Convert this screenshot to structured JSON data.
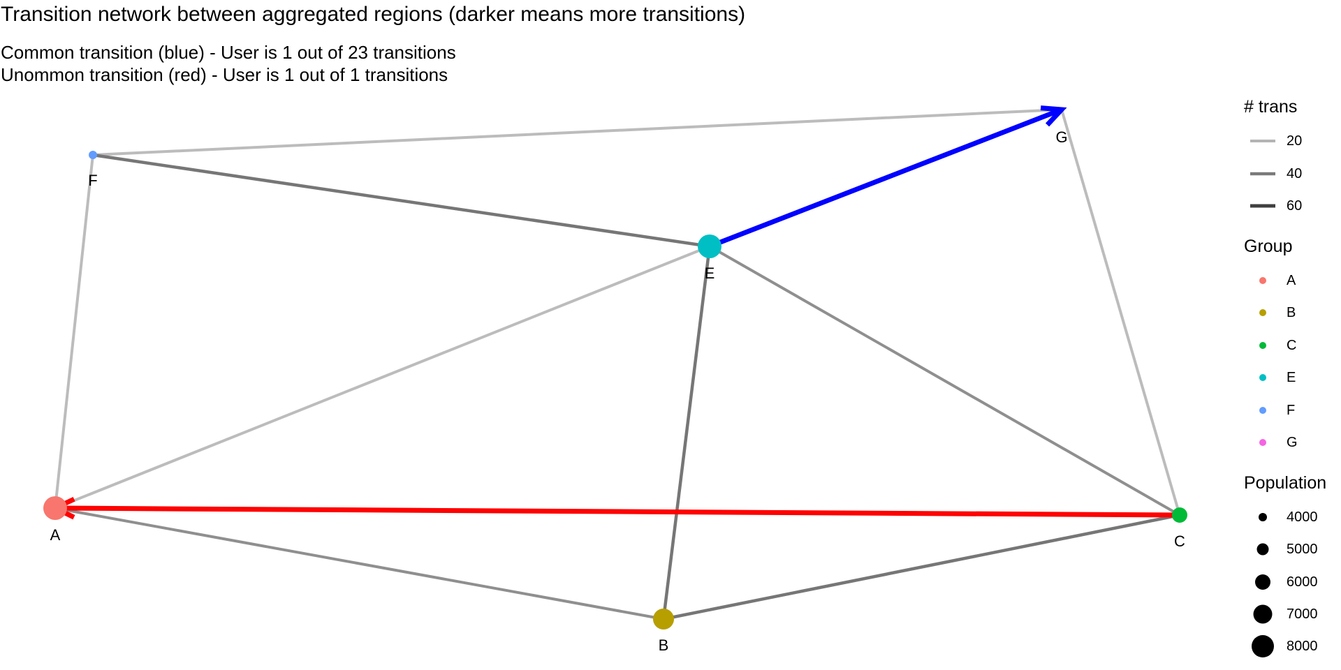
{
  "title": "Transition network between aggregated regions (darker means more transitions)",
  "subtitle_lines": [
    "Common transition (blue) - User is 1 out of 23 transitions",
    "Unommon transition (red) - User is 1 out of 1 transitions"
  ],
  "nodes": [
    {
      "id": "A",
      "label": "A",
      "group": "A",
      "color": "#F8766D",
      "size": "large"
    },
    {
      "id": "B",
      "label": "B",
      "group": "B",
      "color": "#B79F00",
      "size": "medium"
    },
    {
      "id": "C",
      "label": "C",
      "group": "C",
      "color": "#00BA38",
      "size": "small"
    },
    {
      "id": "E",
      "label": "E",
      "group": "E",
      "color": "#00BFC4",
      "size": "large"
    },
    {
      "id": "F",
      "label": "F",
      "group": "F",
      "color": "#619CFF",
      "size": "tiny"
    },
    {
      "id": "G",
      "label": "G",
      "group": "G",
      "color": "#F564E3",
      "size": "none"
    }
  ],
  "edges": [
    {
      "from": "F",
      "to": "G",
      "trans_level": "low"
    },
    {
      "from": "F",
      "to": "E",
      "trans_level": "high"
    },
    {
      "from": "F",
      "to": "A",
      "trans_level": "low"
    },
    {
      "from": "E",
      "to": "A",
      "trans_level": "low"
    },
    {
      "from": "E",
      "to": "B",
      "trans_level": "high"
    },
    {
      "from": "E",
      "to": "C",
      "trans_level": "mid"
    },
    {
      "from": "G",
      "to": "C",
      "trans_level": "low"
    },
    {
      "from": "A",
      "to": "B",
      "trans_level": "mid"
    },
    {
      "from": "B",
      "to": "C",
      "trans_level": "high"
    }
  ],
  "highlighted": [
    {
      "from": "E",
      "to": "G",
      "color": "#0000FF",
      "meaning": "common"
    },
    {
      "from": "C",
      "to": "A",
      "color": "#FF0000",
      "meaning": "uncommon"
    }
  ],
  "legend": {
    "trans": {
      "title": "# trans",
      "items": [
        {
          "label": "20",
          "color": "#b4b4b4"
        },
        {
          "label": "40",
          "color": "#7a7a7a"
        },
        {
          "label": "60",
          "color": "#404040"
        }
      ]
    },
    "group": {
      "title": "Group",
      "items": [
        {
          "label": "A",
          "color": "#F8766D"
        },
        {
          "label": "B",
          "color": "#B79F00"
        },
        {
          "label": "C",
          "color": "#00BA38"
        },
        {
          "label": "E",
          "color": "#00BFC4"
        },
        {
          "label": "F",
          "color": "#619CFF"
        },
        {
          "label": "G",
          "color": "#F564E3"
        }
      ]
    },
    "population": {
      "title": "Population",
      "items": [
        {
          "label": "4000",
          "value": 4000
        },
        {
          "label": "5000",
          "value": 5000
        },
        {
          "label": "6000",
          "value": 6000
        },
        {
          "label": "7000",
          "value": 7000
        },
        {
          "label": "8000",
          "value": 8000
        }
      ]
    }
  }
}
